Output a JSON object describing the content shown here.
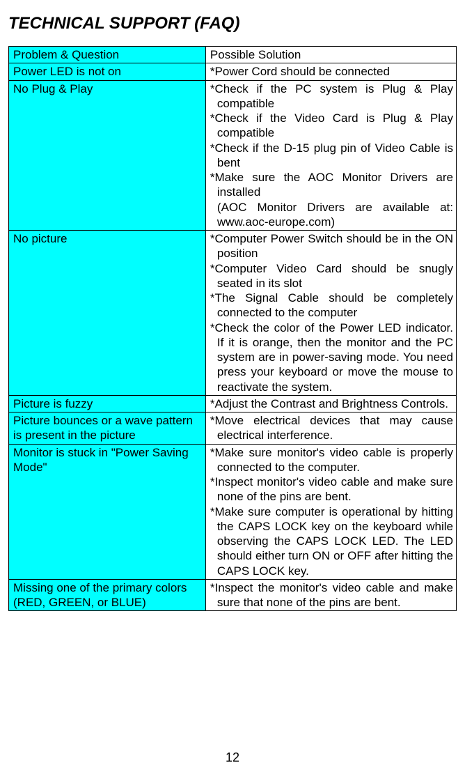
{
  "title": "TECHNICAL SUPPORT (FAQ)",
  "colors": {
    "highlight": "#00ffff",
    "border": "#000000",
    "text": "#000000",
    "background": "#ffffff"
  },
  "table": {
    "header": {
      "problem": "Problem & Question",
      "solution": " Possible Solution"
    },
    "rows": [
      {
        "problem": "Power LED is not on",
        "solution_lines": [
          "*Power Cord should be connected"
        ]
      },
      {
        "problem": "No Plug & Play",
        "solution_lines": [
          "*Check if the PC system is Plug & Play compatible",
          "*Check if the Video Card is Plug & Play compatible",
          "*Check if the D-15 plug pin of Video Cable is bent",
          "*Make sure the AOC Monitor Drivers are installed",
          "(AOC Monitor Drivers are available at: www.aoc-europe.com)"
        ]
      },
      {
        "problem": "No picture",
        "solution_lines": [
          "*Computer Power Switch should be in the ON position",
          "*Computer Video Card should be snugly seated in its slot",
          "*The Signal Cable should be completely connected to the computer",
          "*Check the color of the Power LED indicator. If it is orange, then the monitor and the PC system are in power-saving mode. You need press your keyboard or move the mouse to reactivate the system."
        ]
      },
      {
        "problem": "Picture is fuzzy",
        "solution_lines": [
          "*Adjust the Contrast and Brightness Controls."
        ]
      },
      {
        "problem": "Picture bounces or a wave pattern is present in the picture",
        "solution_lines": [
          "*Move electrical devices that may cause electrical interference."
        ]
      },
      {
        "problem": "Monitor is stuck in \"Power Saving Mode\"",
        "solution_lines": [
          "*Make sure monitor's video cable is properly connected to the computer.",
          "*Inspect monitor's video cable and make sure none of the pins are bent.",
          "*Make sure computer is operational by hitting the CAPS LOCK key on the keyboard while observing the CAPS LOCK LED.  The LED should either turn ON or OFF after hitting the CAPS LOCK key."
        ]
      },
      {
        "problem": "Missing one of the primary colors (RED, GREEN, or BLUE)",
        "solution_lines": [
          "*Inspect the monitor's video cable and make sure that none of the pins are  bent."
        ]
      }
    ]
  },
  "page_number": "12"
}
